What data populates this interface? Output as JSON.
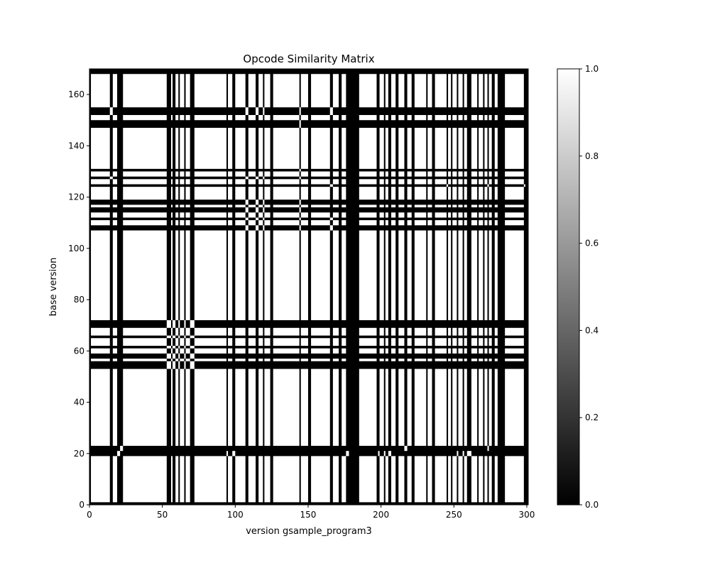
{
  "chart_data": {
    "type": "heatmap",
    "title": "Opcode Similarity Matrix",
    "xlabel": "version gsample_program3",
    "ylabel": "base version",
    "xlim": [
      0,
      301
    ],
    "ylim": [
      0,
      170
    ],
    "xticks": [
      0,
      50,
      100,
      150,
      200,
      250,
      300
    ],
    "yticks": [
      0,
      20,
      40,
      60,
      80,
      100,
      120,
      140,
      160
    ],
    "colorbar": {
      "min": 0.0,
      "max": 1.0,
      "ticks": [
        "0.0",
        "0.2",
        "0.4",
        "0.6",
        "0.8",
        "1.0"
      ],
      "colormap": "gray"
    },
    "default_value": 1,
    "zero_columns": [
      [
        0,
        1
      ],
      [
        14,
        16
      ],
      [
        19,
        23
      ],
      [
        53,
        56
      ],
      [
        57,
        59
      ],
      [
        61,
        62
      ],
      [
        65,
        66
      ],
      [
        69,
        72
      ],
      [
        94,
        95
      ],
      [
        98,
        100
      ],
      [
        107,
        109
      ],
      [
        114,
        116
      ],
      [
        119,
        120
      ],
      [
        124,
        126
      ],
      [
        144,
        145
      ],
      [
        150,
        152
      ],
      [
        165,
        167
      ],
      [
        171,
        173
      ],
      [
        176,
        185
      ],
      [
        197,
        199
      ],
      [
        202,
        203
      ],
      [
        205,
        207
      ],
      [
        210,
        212
      ],
      [
        216,
        218
      ],
      [
        221,
        223
      ],
      [
        231,
        232
      ],
      [
        235,
        237
      ],
      [
        245,
        246
      ],
      [
        248,
        249
      ],
      [
        252,
        253
      ],
      [
        256,
        257
      ],
      [
        259,
        262
      ],
      [
        266,
        267
      ],
      [
        270,
        271
      ],
      [
        273,
        274
      ],
      [
        276,
        278
      ],
      [
        280,
        285
      ],
      [
        298,
        301
      ]
    ],
    "zero_rows": [
      [
        0,
        1
      ],
      [
        19,
        23
      ],
      [
        53,
        56
      ],
      [
        57,
        59
      ],
      [
        61,
        62
      ],
      [
        65,
        66
      ],
      [
        69,
        72
      ],
      [
        107,
        109
      ],
      [
        111,
        112
      ],
      [
        114,
        116
      ],
      [
        117,
        119
      ],
      [
        124,
        125
      ],
      [
        127,
        128
      ],
      [
        130,
        131
      ],
      [
        147,
        150
      ],
      [
        152,
        155
      ],
      [
        168,
        170
      ]
    ],
    "one_cells": [
      {
        "cols": [
          53,
          56
        ],
        "rows": [
          53,
          56
        ]
      },
      {
        "cols": [
          53,
          56
        ],
        "rows": [
          57,
          59
        ]
      },
      {
        "cols": [
          53,
          56
        ],
        "rows": [
          61,
          62
        ]
      },
      {
        "cols": [
          53,
          56
        ],
        "rows": [
          65,
          66
        ]
      },
      {
        "cols": [
          53,
          56
        ],
        "rows": [
          69,
          72
        ]
      },
      {
        "cols": [
          57,
          59
        ],
        "rows": [
          53,
          56
        ]
      },
      {
        "cols": [
          57,
          59
        ],
        "rows": [
          57,
          59
        ]
      },
      {
        "cols": [
          57,
          59
        ],
        "rows": [
          61,
          62
        ]
      },
      {
        "cols": [
          57,
          59
        ],
        "rows": [
          65,
          66
        ]
      },
      {
        "cols": [
          57,
          59
        ],
        "rows": [
          69,
          72
        ]
      },
      {
        "cols": [
          61,
          62
        ],
        "rows": [
          53,
          56
        ]
      },
      {
        "cols": [
          61,
          62
        ],
        "rows": [
          57,
          59
        ]
      },
      {
        "cols": [
          61,
          62
        ],
        "rows": [
          61,
          62
        ]
      },
      {
        "cols": [
          61,
          62
        ],
        "rows": [
          65,
          66
        ]
      },
      {
        "cols": [
          61,
          62
        ],
        "rows": [
          69,
          72
        ]
      },
      {
        "cols": [
          65,
          66
        ],
        "rows": [
          53,
          56
        ]
      },
      {
        "cols": [
          65,
          66
        ],
        "rows": [
          57,
          59
        ]
      },
      {
        "cols": [
          65,
          66
        ],
        "rows": [
          61,
          62
        ]
      },
      {
        "cols": [
          65,
          66
        ],
        "rows": [
          65,
          66
        ]
      },
      {
        "cols": [
          65,
          66
        ],
        "rows": [
          69,
          72
        ]
      },
      {
        "cols": [
          69,
          72
        ],
        "rows": [
          53,
          56
        ]
      },
      {
        "cols": [
          69,
          72
        ],
        "rows": [
          57,
          59
        ]
      },
      {
        "cols": [
          69,
          72
        ],
        "rows": [
          61,
          62
        ]
      },
      {
        "cols": [
          69,
          72
        ],
        "rows": [
          65,
          66
        ]
      },
      {
        "cols": [
          69,
          72
        ],
        "rows": [
          69,
          72
        ]
      },
      {
        "cols": [
          107,
          109
        ],
        "rows": [
          107,
          109
        ]
      },
      {
        "cols": [
          107,
          109
        ],
        "rows": [
          111,
          112
        ]
      },
      {
        "cols": [
          107,
          109
        ],
        "rows": [
          114,
          116
        ]
      },
      {
        "cols": [
          107,
          109
        ],
        "rows": [
          117,
          119
        ]
      },
      {
        "cols": [
          114,
          116
        ],
        "rows": [
          107,
          109
        ]
      },
      {
        "cols": [
          114,
          116
        ],
        "rows": [
          111,
          112
        ]
      },
      {
        "cols": [
          114,
          116
        ],
        "rows": [
          114,
          116
        ]
      },
      {
        "cols": [
          114,
          116
        ],
        "rows": [
          117,
          119
        ]
      },
      {
        "cols": [
          107,
          109
        ],
        "rows": [
          127,
          128
        ]
      },
      {
        "cols": [
          114,
          116
        ],
        "rows": [
          127,
          128
        ]
      },
      {
        "cols": [
          107,
          109
        ],
        "rows": [
          152,
          155
        ]
      },
      {
        "cols": [
          114,
          116
        ],
        "rows": [
          152,
          155
        ]
      },
      {
        "cols": [
          119,
          120
        ],
        "rows": [
          107,
          109
        ]
      },
      {
        "cols": [
          119,
          120
        ],
        "rows": [
          111,
          112
        ]
      },
      {
        "cols": [
          119,
          120
        ],
        "rows": [
          114,
          116
        ]
      },
      {
        "cols": [
          119,
          120
        ],
        "rows": [
          117,
          119
        ]
      },
      {
        "cols": [
          119,
          120
        ],
        "rows": [
          127,
          128
        ]
      },
      {
        "cols": [
          119,
          120
        ],
        "rows": [
          152,
          155
        ]
      },
      {
        "cols": [
          144,
          145
        ],
        "rows": [
          107,
          109
        ]
      },
      {
        "cols": [
          144,
          145
        ],
        "rows": [
          111,
          112
        ]
      },
      {
        "cols": [
          144,
          145
        ],
        "rows": [
          114,
          116
        ]
      },
      {
        "cols": [
          144,
          145
        ],
        "rows": [
          117,
          119
        ]
      },
      {
        "cols": [
          144,
          145
        ],
        "rows": [
          127,
          128
        ]
      },
      {
        "cols": [
          144,
          145
        ],
        "rows": [
          147,
          150
        ]
      },
      {
        "cols": [
          144,
          145
        ],
        "rows": [
          152,
          155
        ]
      },
      {
        "cols": [
          144,
          145
        ],
        "rows": [
          130,
          131
        ]
      },
      {
        "cols": [
          165,
          167
        ],
        "rows": [
          107,
          109
        ]
      },
      {
        "cols": [
          165,
          167
        ],
        "rows": [
          111,
          112
        ]
      },
      {
        "cols": [
          165,
          167
        ],
        "rows": [
          124,
          125
        ]
      },
      {
        "cols": [
          165,
          167
        ],
        "rows": [
          152,
          155
        ]
      },
      {
        "cols": [
          14,
          16
        ],
        "rows": [
          127,
          128
        ]
      },
      {
        "cols": [
          14,
          16
        ],
        "rows": [
          152,
          155
        ]
      },
      {
        "cols": [
          21,
          23
        ],
        "rows": [
          21,
          23
        ]
      },
      {
        "cols": [
          19,
          21
        ],
        "rows": [
          19,
          21
        ]
      },
      {
        "cols": [
          94,
          95
        ],
        "rows": [
          19,
          21
        ]
      },
      {
        "cols": [
          98,
          100
        ],
        "rows": [
          19,
          21
        ]
      },
      {
        "cols": [
          176,
          178
        ],
        "rows": [
          19,
          21
        ]
      },
      {
        "cols": [
          198,
          199
        ],
        "rows": [
          19,
          21
        ]
      },
      {
        "cols": [
          202,
          203
        ],
        "rows": [
          19,
          21
        ]
      },
      {
        "cols": [
          205,
          207
        ],
        "rows": [
          19,
          21
        ]
      },
      {
        "cols": [
          216,
          218
        ],
        "rows": [
          21,
          23
        ]
      },
      {
        "cols": [
          252,
          253
        ],
        "rows": [
          19,
          21
        ]
      },
      {
        "cols": [
          256,
          257
        ],
        "rows": [
          19,
          21
        ]
      },
      {
        "cols": [
          259,
          262
        ],
        "rows": [
          19,
          21
        ]
      },
      {
        "cols": [
          273,
          274
        ],
        "rows": [
          21,
          23
        ]
      },
      {
        "cols": [
          245,
          246
        ],
        "rows": [
          124,
          125
        ]
      },
      {
        "cols": [
          273,
          274
        ],
        "rows": [
          124,
          125
        ]
      },
      {
        "cols": [
          298,
          299
        ],
        "rows": [
          124,
          125
        ]
      }
    ]
  }
}
